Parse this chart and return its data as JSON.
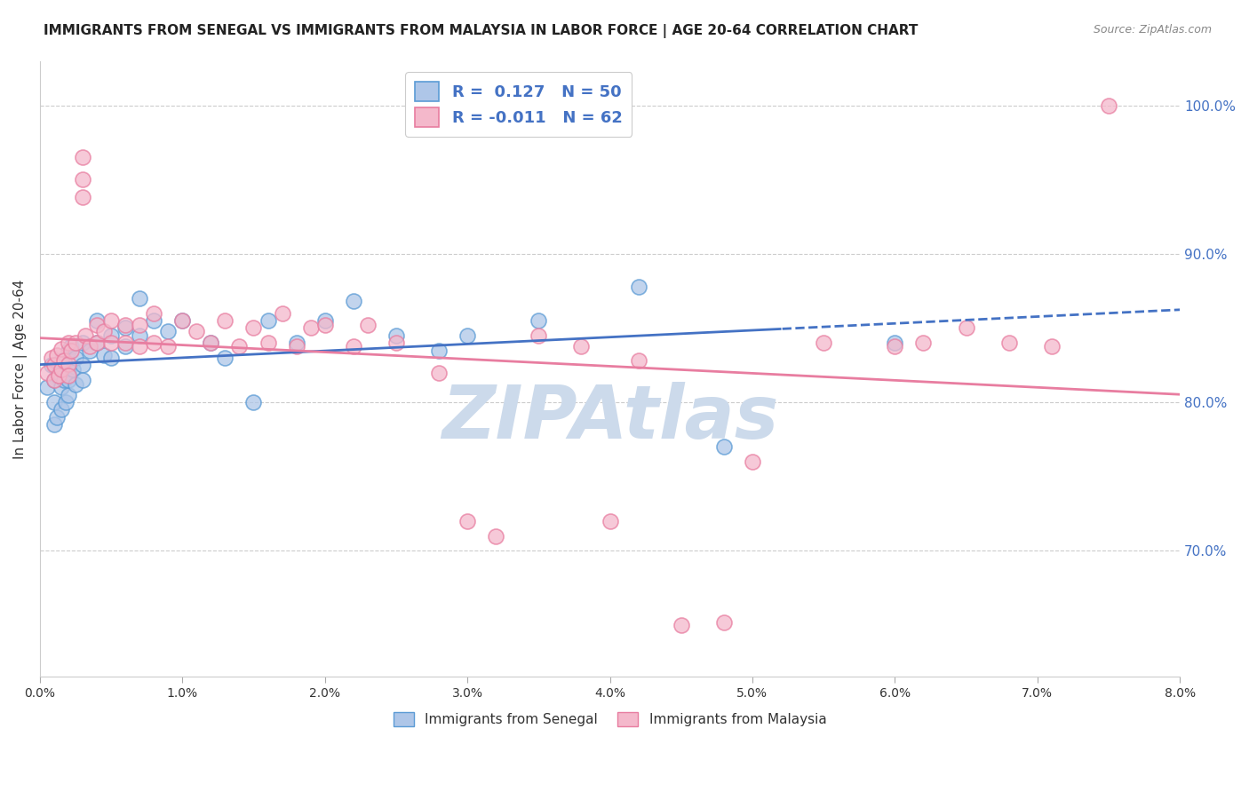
{
  "title": "IMMIGRANTS FROM SENEGAL VS IMMIGRANTS FROM MALAYSIA IN LABOR FORCE | AGE 20-64 CORRELATION CHART",
  "source": "Source: ZipAtlas.com",
  "ylabel": "In Labor Force | Age 20-64",
  "right_yticks": [
    0.7,
    0.8,
    0.9,
    1.0
  ],
  "right_yticklabels": [
    "70.0%",
    "80.0%",
    "90.0%",
    "100.0%"
  ],
  "xlim": [
    0.0,
    0.08
  ],
  "ylim": [
    0.615,
    1.03
  ],
  "senegal_R": 0.127,
  "senegal_N": 50,
  "malaysia_R": -0.011,
  "malaysia_N": 62,
  "color_senegal_fill": "#aec6e8",
  "color_senegal_edge": "#5b9bd5",
  "color_malaysia_fill": "#f4b8cb",
  "color_malaysia_edge": "#e87da0",
  "color_senegal_line": "#4472c4",
  "color_malaysia_line": "#e87da0",
  "color_r_blue": "#4472c4",
  "color_watermark": "#ccdaeb",
  "watermark_text": "ZIPAtlas",
  "senegal_x": [
    0.0005,
    0.0008,
    0.001,
    0.001,
    0.001,
    0.0012,
    0.0013,
    0.0015,
    0.0015,
    0.0015,
    0.0017,
    0.0018,
    0.002,
    0.002,
    0.002,
    0.002,
    0.0022,
    0.0023,
    0.0025,
    0.0025,
    0.003,
    0.003,
    0.003,
    0.0035,
    0.004,
    0.004,
    0.0045,
    0.005,
    0.005,
    0.006,
    0.006,
    0.007,
    0.007,
    0.008,
    0.009,
    0.01,
    0.012,
    0.013,
    0.015,
    0.016,
    0.018,
    0.02,
    0.022,
    0.025,
    0.028,
    0.03,
    0.035,
    0.042,
    0.048,
    0.06
  ],
  "senegal_y": [
    0.81,
    0.825,
    0.785,
    0.8,
    0.815,
    0.79,
    0.82,
    0.795,
    0.81,
    0.828,
    0.815,
    0.8,
    0.835,
    0.82,
    0.805,
    0.815,
    0.838,
    0.822,
    0.83,
    0.812,
    0.84,
    0.825,
    0.815,
    0.835,
    0.84,
    0.855,
    0.832,
    0.845,
    0.83,
    0.85,
    0.838,
    0.87,
    0.845,
    0.855,
    0.848,
    0.855,
    0.84,
    0.83,
    0.8,
    0.855,
    0.84,
    0.855,
    0.868,
    0.845,
    0.835,
    0.845,
    0.855,
    0.878,
    0.77,
    0.84
  ],
  "malaysia_x": [
    0.0005,
    0.0008,
    0.001,
    0.001,
    0.0012,
    0.0013,
    0.0015,
    0.0015,
    0.0017,
    0.002,
    0.002,
    0.002,
    0.0022,
    0.0025,
    0.003,
    0.003,
    0.003,
    0.0032,
    0.0035,
    0.004,
    0.004,
    0.0045,
    0.005,
    0.005,
    0.006,
    0.006,
    0.007,
    0.007,
    0.008,
    0.008,
    0.009,
    0.01,
    0.011,
    0.012,
    0.013,
    0.014,
    0.015,
    0.016,
    0.017,
    0.018,
    0.019,
    0.02,
    0.022,
    0.023,
    0.025,
    0.028,
    0.03,
    0.032,
    0.035,
    0.038,
    0.04,
    0.042,
    0.045,
    0.048,
    0.05,
    0.055,
    0.06,
    0.062,
    0.065,
    0.068,
    0.071,
    0.075
  ],
  "malaysia_y": [
    0.82,
    0.83,
    0.815,
    0.825,
    0.832,
    0.818,
    0.822,
    0.836,
    0.828,
    0.84,
    0.826,
    0.818,
    0.835,
    0.84,
    0.965,
    0.95,
    0.938,
    0.845,
    0.838,
    0.852,
    0.84,
    0.848,
    0.855,
    0.84,
    0.852,
    0.84,
    0.838,
    0.852,
    0.84,
    0.86,
    0.838,
    0.855,
    0.848,
    0.84,
    0.855,
    0.838,
    0.85,
    0.84,
    0.86,
    0.838,
    0.85,
    0.852,
    0.838,
    0.852,
    0.84,
    0.82,
    0.72,
    0.71,
    0.845,
    0.838,
    0.72,
    0.828,
    0.65,
    0.652,
    0.76,
    0.84,
    0.838,
    0.84,
    0.85,
    0.84,
    0.838,
    1.0
  ]
}
